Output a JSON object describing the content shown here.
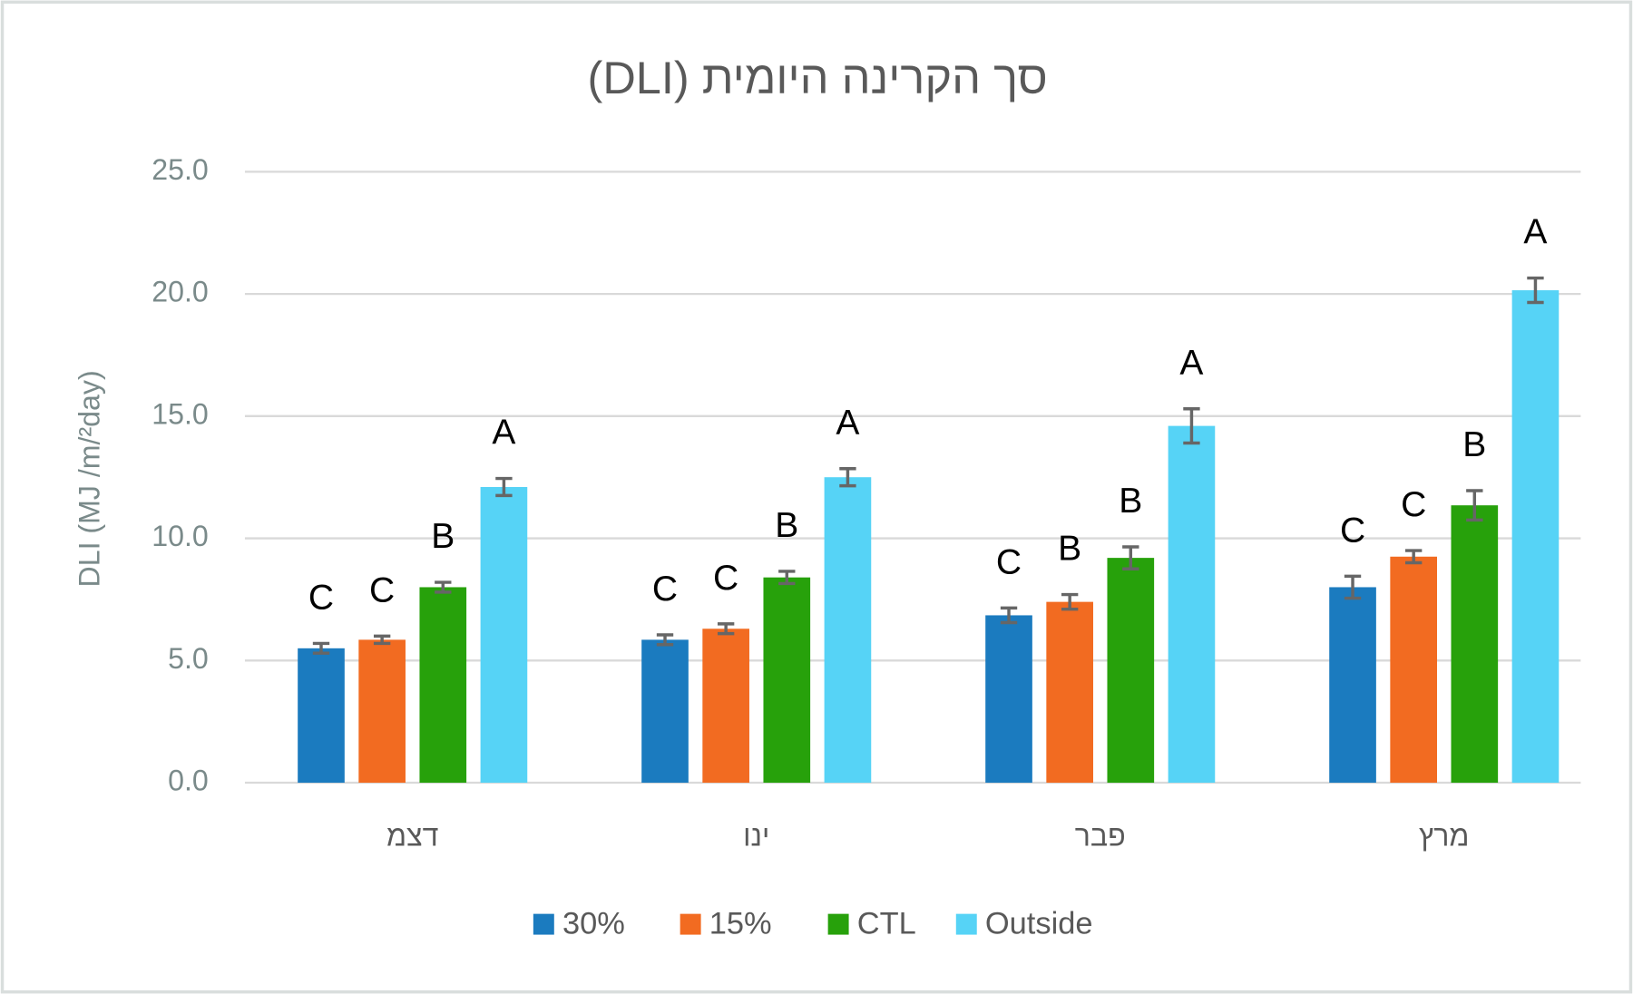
{
  "chart_data": {
    "type": "bar",
    "title": "סך הקרינה היומית (DLI)",
    "y_label": "DLI (MJ /m/²day)",
    "categories": [
      "דצמ",
      "ינו",
      "פבר",
      "מרץ"
    ],
    "series": [
      {
        "name": "30%",
        "color": "#1b7bbf",
        "values": [
          5.5,
          5.85,
          6.85,
          8.0
        ],
        "errors": [
          0.2,
          0.2,
          0.3,
          0.45
        ],
        "significance_letters": [
          "C",
          "C",
          "C",
          "C"
        ]
      },
      {
        "name": "15%",
        "color": "#f26b21",
        "values": [
          5.85,
          6.3,
          7.4,
          9.25
        ],
        "errors": [
          0.15,
          0.2,
          0.3,
          0.25
        ],
        "significance_letters": [
          "C",
          "C",
          "B",
          "C"
        ]
      },
      {
        "name": "CTL",
        "color": "#27a10b",
        "values": [
          8.0,
          8.4,
          9.2,
          11.35
        ],
        "errors": [
          0.2,
          0.25,
          0.45,
          0.6
        ],
        "significance_letters": [
          "B",
          "B",
          "B",
          "B"
        ]
      },
      {
        "name": "Outside",
        "color": "#56d3f6",
        "values": [
          12.1,
          12.5,
          14.6,
          20.15
        ],
        "errors": [
          0.35,
          0.35,
          0.7,
          0.5
        ],
        "significance_letters": [
          "A",
          "A",
          "A",
          "A"
        ]
      }
    ],
    "ylim": [
      0,
      25
    ],
    "yticks": [
      {
        "value": 0,
        "label": "0.0"
      },
      {
        "value": 5,
        "label": "5.0"
      },
      {
        "value": 10,
        "label": "10.0"
      },
      {
        "value": 15,
        "label": "15.0"
      },
      {
        "value": 20,
        "label": "20.0"
      },
      {
        "value": 25,
        "label": "25.0"
      }
    ],
    "grid": true,
    "legend": "bottom"
  }
}
